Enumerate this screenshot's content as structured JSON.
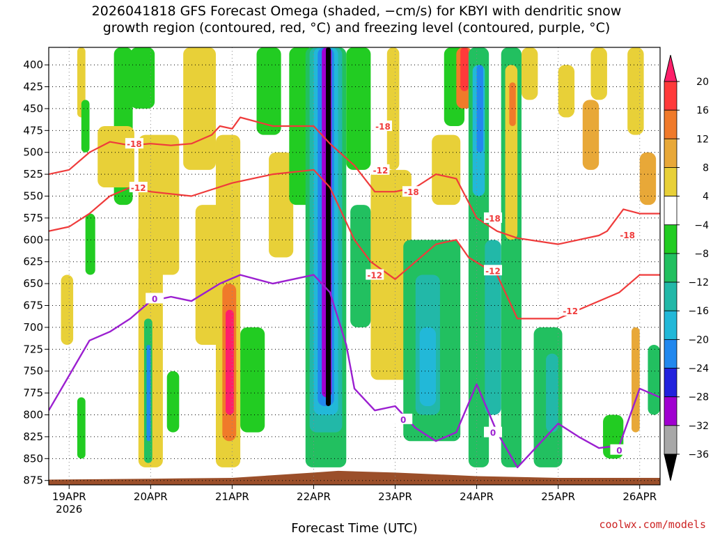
{
  "title": {
    "line1": "2026041818 GFS Forecast Omega (shaded, −cm/s) for KBYI with dendritic snow",
    "line2": "growth region (contoured, red, °C) and freezing level (contoured, purple, °C)"
  },
  "credit": "coolwx.com/models",
  "chart_data": {
    "type": "heatmap",
    "xlabel": "Forecast Time (UTC)",
    "x_ticks": [
      "19APR",
      "20APR",
      "21APR",
      "22APR",
      "23APR",
      "24APR",
      "25APR",
      "26APR"
    ],
    "x_year": "2026",
    "y_ticks": [
      400,
      425,
      450,
      475,
      500,
      525,
      550,
      575,
      600,
      625,
      650,
      675,
      700,
      725,
      750,
      775,
      800,
      825,
      850,
      875
    ],
    "ylim_hpa": [
      380,
      880
    ],
    "xlim_days": [
      -0.25,
      7.25
    ],
    "colorbar": {
      "labels": [
        "20",
        "16",
        "12",
        "8",
        "4",
        "−4",
        "−8",
        "−12",
        "−16",
        "−20",
        "−24",
        "−28",
        "−32",
        "−36"
      ],
      "colors": [
        "#ff1f6a",
        "#ff3a3a",
        "#f07a2a",
        "#e8a838",
        "#e8d038",
        "#f0f050",
        "#ffffff",
        "#22cc22",
        "#22c060",
        "#22b8a8",
        "#22b8d8",
        "#2288ee",
        "#2222dd",
        "#7a22cc",
        "#a000d0",
        "#a8a8a8",
        "#000000"
      ]
    },
    "dendritic_isotherms": [
      {
        "label": "-18",
        "points": [
          [
            -0.25,
            525
          ],
          [
            0,
            520
          ],
          [
            0.25,
            500
          ],
          [
            0.5,
            488
          ],
          [
            0.75,
            492
          ],
          [
            1,
            490
          ],
          [
            1.25,
            492
          ],
          [
            1.5,
            490
          ],
          [
            1.75,
            480
          ],
          [
            1.85,
            470
          ],
          [
            2,
            473
          ],
          [
            2.1,
            460
          ],
          [
            2.5,
            470
          ],
          [
            3,
            470
          ],
          [
            3.2,
            490
          ],
          [
            3.5,
            515
          ],
          [
            3.75,
            545
          ],
          [
            4,
            545
          ],
          [
            4.25,
            540
          ],
          [
            4.5,
            525
          ],
          [
            4.75,
            530
          ],
          [
            5,
            575
          ],
          [
            5.25,
            590
          ],
          [
            5.5,
            598
          ],
          [
            6,
            605
          ],
          [
            6.25,
            600
          ],
          [
            6.5,
            595
          ],
          [
            6.6,
            590
          ],
          [
            6.8,
            565
          ],
          [
            7,
            570
          ],
          [
            7.25,
            570
          ]
        ],
        "label_positions": [
          [
            0.8,
            490
          ],
          [
            3.85,
            470
          ],
          [
            4.2,
            545
          ],
          [
            5.2,
            575
          ],
          [
            6.85,
            594
          ]
        ]
      },
      {
        "label": "-12",
        "points": [
          [
            -0.25,
            590
          ],
          [
            0,
            585
          ],
          [
            0.25,
            570
          ],
          [
            0.5,
            550
          ],
          [
            0.75,
            540
          ],
          [
            1,
            545
          ],
          [
            1.5,
            550
          ],
          [
            2,
            535
          ],
          [
            2.5,
            525
          ],
          [
            3,
            520
          ],
          [
            3.2,
            540
          ],
          [
            3.5,
            600
          ],
          [
            3.7,
            625
          ],
          [
            4,
            645
          ],
          [
            4.25,
            625
          ],
          [
            4.5,
            605
          ],
          [
            4.75,
            600
          ],
          [
            4.9,
            620
          ],
          [
            5.25,
            640
          ],
          [
            5.5,
            690
          ],
          [
            6,
            690
          ],
          [
            6.25,
            680
          ],
          [
            6.5,
            670
          ],
          [
            6.75,
            660
          ],
          [
            7,
            640
          ],
          [
            7.25,
            640
          ]
        ],
        "label_positions": [
          [
            0.85,
            540
          ],
          [
            3.82,
            520
          ],
          [
            3.75,
            640
          ],
          [
            5.2,
            635
          ],
          [
            6.15,
            681
          ]
        ]
      }
    ],
    "freezing_level": {
      "label": "0",
      "points": [
        [
          -0.25,
          795
        ],
        [
          0,
          755
        ],
        [
          0.25,
          715
        ],
        [
          0.5,
          705
        ],
        [
          0.75,
          690
        ],
        [
          1,
          670
        ],
        [
          1.25,
          665
        ],
        [
          1.5,
          670
        ],
        [
          1.85,
          650
        ],
        [
          2.1,
          640
        ],
        [
          2.5,
          650
        ],
        [
          2.75,
          645
        ],
        [
          3,
          640
        ],
        [
          3.2,
          660
        ],
        [
          3.4,
          720
        ],
        [
          3.5,
          770
        ],
        [
          3.75,
          795
        ],
        [
          4,
          790
        ],
        [
          4.25,
          815
        ],
        [
          4.5,
          830
        ],
        [
          4.75,
          820
        ],
        [
          5,
          765
        ],
        [
          5.25,
          820
        ],
        [
          5.5,
          860
        ],
        [
          5.75,
          835
        ],
        [
          6,
          810
        ],
        [
          6.25,
          825
        ],
        [
          6.5,
          838
        ],
        [
          6.75,
          835
        ],
        [
          7,
          770
        ],
        [
          7.25,
          780
        ]
      ],
      "label_positions": [
        [
          1.05,
          667
        ],
        [
          4.1,
          805
        ],
        [
          5.2,
          820
        ],
        [
          6.75,
          840
        ]
      ]
    },
    "terrain_top_hpa": [
      [
        -0.25,
        874
      ],
      [
        1,
        873
      ],
      [
        2,
        872
      ],
      [
        3,
        866
      ],
      [
        3.3,
        864
      ],
      [
        4,
        866
      ],
      [
        5,
        870
      ],
      [
        6,
        872
      ],
      [
        7.25,
        872
      ]
    ],
    "omega_cells": [
      {
        "t0": -0.1,
        "t1": 0.05,
        "p0": 640,
        "p1": 720,
        "v": 6
      },
      {
        "t0": 0.1,
        "t1": 0.2,
        "p0": 380,
        "p1": 460,
        "v": 6
      },
      {
        "t0": 0.15,
        "t1": 0.25,
        "p0": 440,
        "p1": 500,
        "v": -6
      },
      {
        "t0": 0.2,
        "t1": 0.32,
        "p0": 570,
        "p1": 640,
        "v": -6
      },
      {
        "t0": 0.1,
        "t1": 0.2,
        "p0": 780,
        "p1": 850,
        "v": -6
      },
      {
        "t0": 0.55,
        "t1": 0.78,
        "p0": 380,
        "p1": 560,
        "v": -6
      },
      {
        "t0": 0.35,
        "t1": 0.8,
        "p0": 470,
        "p1": 540,
        "v": 6
      },
      {
        "t0": 0.75,
        "t1": 1.05,
        "p0": 380,
        "p1": 450,
        "v": -6
      },
      {
        "t0": 0.85,
        "t1": 1.35,
        "p0": 480,
        "p1": 640,
        "v": 6
      },
      {
        "t0": 0.85,
        "t1": 1.15,
        "p0": 580,
        "p1": 860,
        "v": 6
      },
      {
        "t0": 0.92,
        "t1": 1.02,
        "p0": 690,
        "p1": 855,
        "v": -10
      },
      {
        "t0": 0.95,
        "t1": 1.0,
        "p0": 720,
        "p1": 830,
        "v": -20
      },
      {
        "t0": 1.2,
        "t1": 1.35,
        "p0": 750,
        "p1": 820,
        "v": -6
      },
      {
        "t0": 1.4,
        "t1": 1.8,
        "p0": 380,
        "p1": 520,
        "v": 6
      },
      {
        "t0": 1.55,
        "t1": 1.9,
        "p0": 560,
        "p1": 720,
        "v": 6
      },
      {
        "t0": 1.8,
        "t1": 2.1,
        "p0": 480,
        "p1": 860,
        "v": 6
      },
      {
        "t0": 1.88,
        "t1": 2.05,
        "p0": 650,
        "p1": 830,
        "v": 12
      },
      {
        "t0": 1.92,
        "t1": 2.02,
        "p0": 680,
        "p1": 800,
        "v": 20
      },
      {
        "t0": 2.1,
        "t1": 2.4,
        "p0": 700,
        "p1": 820,
        "v": -6
      },
      {
        "t0": 2.3,
        "t1": 2.6,
        "p0": 380,
        "p1": 480,
        "v": -6
      },
      {
        "t0": 2.45,
        "t1": 2.75,
        "p0": 500,
        "p1": 620,
        "v": 6
      },
      {
        "t0": 2.7,
        "t1": 3.0,
        "p0": 380,
        "p1": 560,
        "v": -6
      },
      {
        "t0": 2.9,
        "t1": 3.4,
        "p0": 380,
        "p1": 860,
        "v": -8
      },
      {
        "t0": 2.95,
        "t1": 3.35,
        "p0": 380,
        "p1": 820,
        "v": -12
      },
      {
        "t0": 3.0,
        "t1": 3.3,
        "p0": 380,
        "p1": 800,
        "v": -16
      },
      {
        "t0": 3.05,
        "t1": 3.25,
        "p0": 380,
        "p1": 790,
        "v": -22
      },
      {
        "t0": 3.1,
        "t1": 3.22,
        "p0": 380,
        "p1": 780,
        "v": -28
      },
      {
        "t0": 3.15,
        "t1": 3.21,
        "p0": 380,
        "p1": 790,
        "v": -36
      },
      {
        "t0": 3.4,
        "t1": 3.7,
        "p0": 380,
        "p1": 520,
        "v": -6
      },
      {
        "t0": 3.45,
        "t1": 3.7,
        "p0": 560,
        "p1": 700,
        "v": -8
      },
      {
        "t0": 3.7,
        "t1": 4.2,
        "p0": 520,
        "p1": 760,
        "v": 6
      },
      {
        "t0": 3.9,
        "t1": 4.05,
        "p0": 380,
        "p1": 520,
        "v": 6
      },
      {
        "t0": 4.1,
        "t1": 4.8,
        "p0": 600,
        "p1": 830,
        "v": -8
      },
      {
        "t0": 4.25,
        "t1": 4.55,
        "p0": 640,
        "p1": 800,
        "v": -12
      },
      {
        "t0": 4.3,
        "t1": 4.5,
        "p0": 700,
        "p1": 790,
        "v": -16
      },
      {
        "t0": 4.45,
        "t1": 4.8,
        "p0": 480,
        "p1": 560,
        "v": 6
      },
      {
        "t0": 4.6,
        "t1": 4.85,
        "p0": 380,
        "p1": 470,
        "v": -6
      },
      {
        "t0": 4.75,
        "t1": 4.95,
        "p0": 380,
        "p1": 450,
        "v": 12
      },
      {
        "t0": 4.8,
        "t1": 4.9,
        "p0": 380,
        "p1": 430,
        "v": 18
      },
      {
        "t0": 4.9,
        "t1": 5.15,
        "p0": 380,
        "p1": 860,
        "v": -8
      },
      {
        "t0": 4.95,
        "t1": 5.1,
        "p0": 400,
        "p1": 550,
        "v": -16
      },
      {
        "t0": 5.0,
        "t1": 5.08,
        "p0": 400,
        "p1": 500,
        "v": -22
      },
      {
        "t0": 5.1,
        "t1": 5.3,
        "p0": 600,
        "p1": 800,
        "v": -12
      },
      {
        "t0": 5.3,
        "t1": 5.55,
        "p0": 380,
        "p1": 860,
        "v": -8
      },
      {
        "t0": 5.35,
        "t1": 5.5,
        "p0": 400,
        "p1": 600,
        "v": 6
      },
      {
        "t0": 5.4,
        "t1": 5.48,
        "p0": 420,
        "p1": 470,
        "v": 14
      },
      {
        "t0": 5.55,
        "t1": 5.75,
        "p0": 380,
        "p1": 440,
        "v": 6
      },
      {
        "t0": 5.7,
        "t1": 6.05,
        "p0": 700,
        "p1": 860,
        "v": -8
      },
      {
        "t0": 5.85,
        "t1": 6.0,
        "p0": 730,
        "p1": 820,
        "v": -14
      },
      {
        "t0": 6.0,
        "t1": 6.2,
        "p0": 400,
        "p1": 460,
        "v": 6
      },
      {
        "t0": 6.3,
        "t1": 6.5,
        "p0": 440,
        "p1": 520,
        "v": 8
      },
      {
        "t0": 6.4,
        "t1": 6.6,
        "p0": 380,
        "p1": 440,
        "v": 6
      },
      {
        "t0": 6.55,
        "t1": 6.8,
        "p0": 800,
        "p1": 850,
        "v": -6
      },
      {
        "t0": 6.85,
        "t1": 7.05,
        "p0": 380,
        "p1": 480,
        "v": 6
      },
      {
        "t0": 6.9,
        "t1": 7.0,
        "p0": 700,
        "p1": 820,
        "v": 8
      },
      {
        "t0": 7.0,
        "t1": 7.2,
        "p0": 500,
        "p1": 560,
        "v": 8
      },
      {
        "t0": 7.1,
        "t1": 7.25,
        "p0": 720,
        "p1": 800,
        "v": -8
      }
    ]
  }
}
